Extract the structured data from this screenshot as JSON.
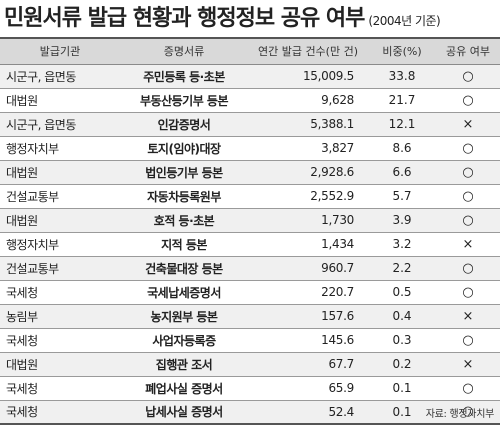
{
  "title": "민원서류 발급 현황과 행정정보 공유 여부",
  "subtitle": "(2004년 기준)",
  "headers": [
    "발급기관",
    "증명서류",
    "연간 발급 건수(만 건)",
    "비중(%)",
    "공유 여부"
  ],
  "rows": [
    [
      "시군구, 읍면동",
      "주민등록 등·초본",
      "15,009.5",
      "33.8",
      "○"
    ],
    [
      "대법원",
      "부동산등기부 등본",
      "9,628",
      "21.7",
      "○"
    ],
    [
      "시군구, 읍면동",
      "인감증명서",
      "5,388.1",
      "12.1",
      "×"
    ],
    [
      "행정자치부",
      "토지(임야)대장",
      "3,827",
      "8.6",
      "○"
    ],
    [
      "대법원",
      "법인등기부 등본",
      "2,928.6",
      "6.6",
      "○"
    ],
    [
      "건설교통부",
      "자동차등록원부",
      "2,552.9",
      "5.7",
      "○"
    ],
    [
      "대법원",
      "호적 등·초본",
      "1,730",
      "3.9",
      "○"
    ],
    [
      "행정자치부",
      "지적 등본",
      "1,434",
      "3.2",
      "×"
    ],
    [
      "건설교통부",
      "건축물대장 등본",
      "960.7",
      "2.2",
      "○"
    ],
    [
      "국세청",
      "국세납세증명서",
      "220.7",
      "0.5",
      "○"
    ],
    [
      "농림부",
      "농지원부 등본",
      "157.6",
      "0.4",
      "×"
    ],
    [
      "국세청",
      "사업자등록증",
      "145.6",
      "0.3",
      "○"
    ],
    [
      "대법원",
      "집행관 조서",
      "67.7",
      "0.2",
      "×"
    ],
    [
      "국세청",
      "폐업사실 증명서",
      "65.9",
      "0.1",
      "○"
    ],
    [
      "국세청",
      "납세사실 증명서",
      "52.4",
      "0.1",
      "○"
    ]
  ],
  "source": "자료:  행정자치부"
}
